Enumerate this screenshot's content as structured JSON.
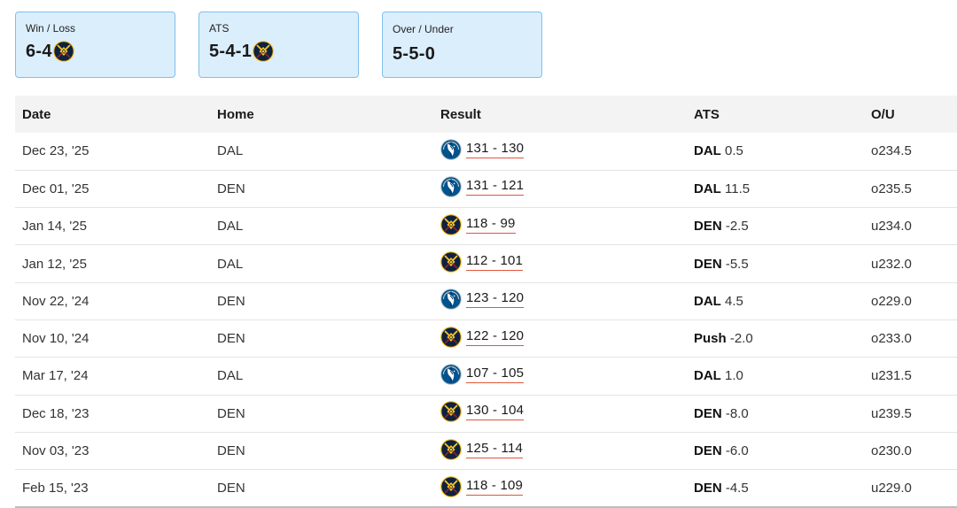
{
  "summary": {
    "win_loss": {
      "label": "Win / Loss",
      "value": "6-4",
      "team_logo": "nuggets-logo"
    },
    "ats": {
      "label": "ATS",
      "value": "5-4-1",
      "team_logo": "nuggets-logo"
    },
    "over_under": {
      "label": "Over / Under",
      "value": "5-5-0"
    }
  },
  "table": {
    "headers": [
      "Date",
      "Home",
      "Result",
      "ATS",
      "O/U"
    ],
    "rows": [
      {
        "date": "Dec 23, '25",
        "home": "DAL",
        "winner_logo": "mavericks-logo",
        "score": "131 - 130",
        "ats_team": "DAL",
        "ats_line": "0.5",
        "ou": "o234.5"
      },
      {
        "date": "Dec 01, '25",
        "home": "DEN",
        "winner_logo": "mavericks-logo",
        "score": "131 - 121",
        "ats_team": "DAL",
        "ats_line": "11.5",
        "ou": "o235.5"
      },
      {
        "date": "Jan 14, '25",
        "home": "DAL",
        "winner_logo": "nuggets-logo",
        "score": "118 - 99",
        "ats_team": "DEN",
        "ats_line": "-2.5",
        "ou": "u234.0"
      },
      {
        "date": "Jan 12, '25",
        "home": "DAL",
        "winner_logo": "nuggets-logo",
        "score": "112 - 101",
        "ats_team": "DEN",
        "ats_line": "-5.5",
        "ou": "u232.0"
      },
      {
        "date": "Nov 22, '24",
        "home": "DEN",
        "winner_logo": "mavericks-logo",
        "score": "123 - 120",
        "ats_team": "DAL",
        "ats_line": "4.5",
        "ou": "o229.0"
      },
      {
        "date": "Nov 10, '24",
        "home": "DEN",
        "winner_logo": "nuggets-logo",
        "score": "122 - 120",
        "ats_team": "Push",
        "ats_line": "-2.0",
        "ou": "o233.0"
      },
      {
        "date": "Mar 17, '24",
        "home": "DAL",
        "winner_logo": "mavericks-logo",
        "score": "107 - 105",
        "ats_team": "DAL",
        "ats_line": "1.0",
        "ou": "u231.5"
      },
      {
        "date": "Dec 18, '23",
        "home": "DEN",
        "winner_logo": "nuggets-logo",
        "score": "130 - 104",
        "ats_team": "DEN",
        "ats_line": "-8.0",
        "ou": "u239.5"
      },
      {
        "date": "Nov 03, '23",
        "home": "DEN",
        "winner_logo": "nuggets-logo",
        "score": "125 - 114",
        "ats_team": "DEN",
        "ats_line": "-6.0",
        "ou": "o230.0"
      },
      {
        "date": "Feb 15, '23",
        "home": "DEN",
        "winner_logo": "nuggets-logo",
        "score": "118 - 109",
        "ats_team": "DEN",
        "ats_line": "-4.5",
        "ou": "u229.0"
      }
    ]
  },
  "colors": {
    "card_bg": "#dbeefc",
    "card_border": "#7fc0ec",
    "score_underline": "#e0563b",
    "nuggets_navy": "#0e2240",
    "nuggets_gold": "#fec524",
    "mavericks_blue": "#00538c"
  }
}
